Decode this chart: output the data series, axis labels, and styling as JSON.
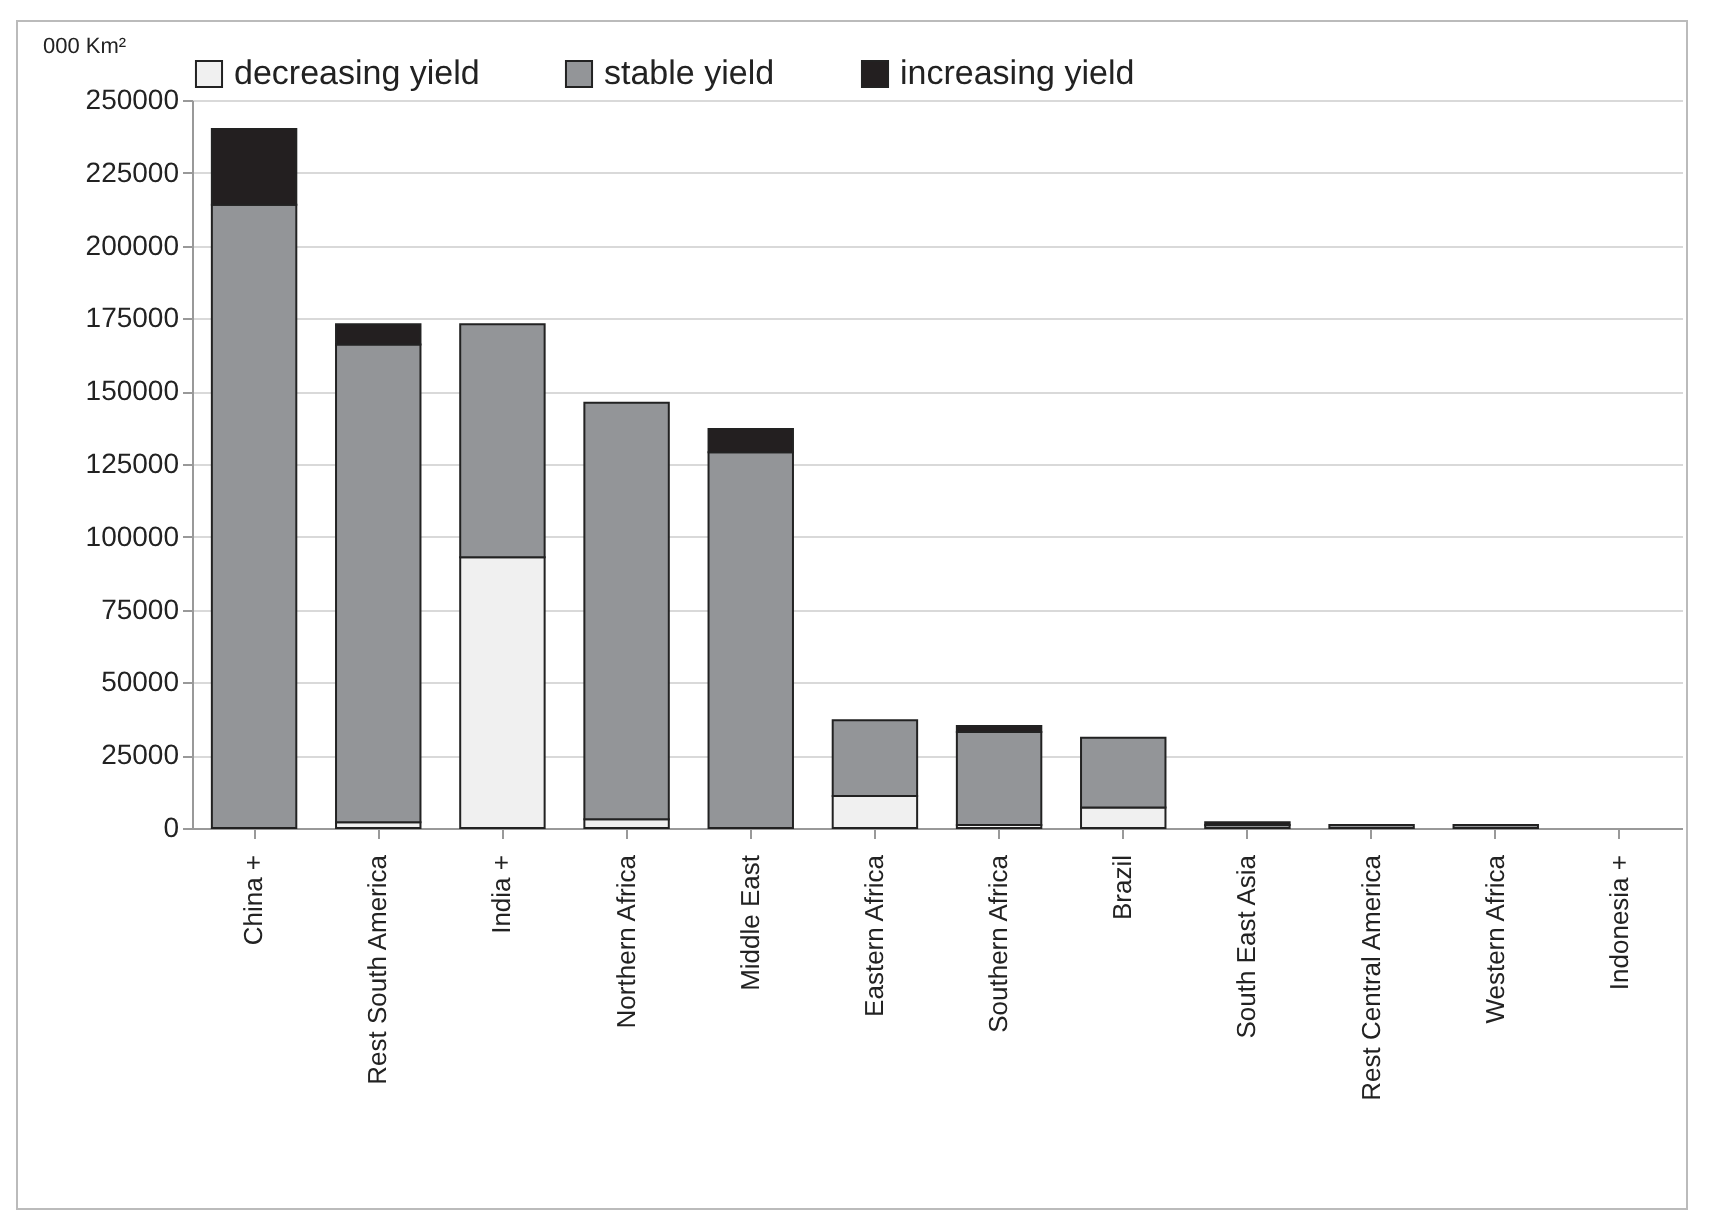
{
  "chart_data": {
    "type": "bar",
    "ylabel": "000 Km²",
    "stacked": true,
    "grid": "y",
    "legend": "top",
    "categories": [
      "China +",
      "Rest South America",
      "India +",
      "Northern Africa",
      "Middle East",
      "Eastern Africa",
      "Southern Africa",
      "Brazil",
      "South East Asia",
      "Rest Central America",
      "Western Africa",
      "Indonesia +"
    ],
    "ylim": [
      0,
      250000
    ],
    "yticks": [
      0,
      25000,
      50000,
      75000,
      100000,
      125000,
      150000,
      175000,
      200000,
      225000,
      250000
    ],
    "series": [
      {
        "name": "decreasing yield",
        "color": "#f0f0f0",
        "values": [
          0,
          2000,
          93000,
          3000,
          0,
          11000,
          1000,
          7000,
          0,
          0,
          0,
          0
        ]
      },
      {
        "name": "stable yield",
        "color": "#939598",
        "values": [
          214000,
          164000,
          80000,
          143000,
          129000,
          26000,
          32000,
          24000,
          1000,
          1000,
          1000,
          0
        ]
      },
      {
        "name": "increasing yield",
        "color": "#231f20",
        "values": [
          26000,
          7000,
          0,
          0,
          8000,
          0,
          2000,
          0,
          1000,
          0,
          0,
          0
        ]
      }
    ]
  }
}
